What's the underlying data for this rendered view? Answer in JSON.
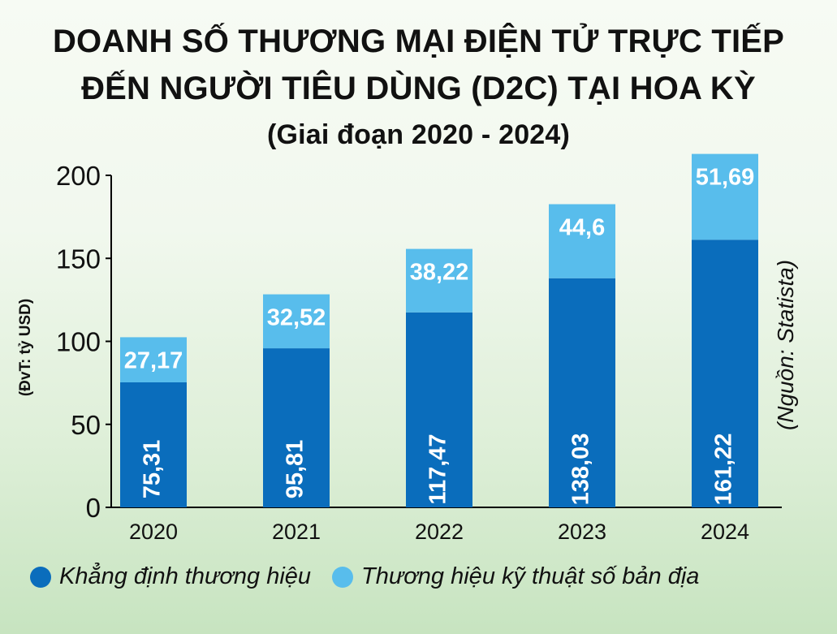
{
  "title": {
    "line1": "DOANH SỐ THƯƠNG MẠI ĐIỆN TỬ TRỰC TIẾP",
    "line2": "ĐẾN NGƯỜI TIÊU DÙNG (D2C) TẠI HOA KỲ",
    "subtitle": "(Giai đoạn 2020 - 2024)"
  },
  "unit_label": "(ĐvT: tỷ USD)",
  "source_label": "(Nguồn: Statista)",
  "chart_data": {
    "type": "bar",
    "stacked": true,
    "categories": [
      "2020",
      "2021",
      "2022",
      "2023",
      "2024"
    ],
    "series": [
      {
        "name": "Khẳng định thương hiệu",
        "values": [
          75.31,
          95.81,
          117.47,
          138.03,
          161.22
        ],
        "labels": [
          "75,31",
          "95,81",
          "117,47",
          "138,03",
          "161,22"
        ],
        "color": "#0a6dbc"
      },
      {
        "name": "Thương hiệu kỹ thuật số bản địa",
        "values": [
          27.17,
          32.52,
          38.22,
          44.6,
          51.69
        ],
        "labels": [
          "27,17",
          "32,52",
          "38,22",
          "44,6",
          "51,69"
        ],
        "color": "#58bdec"
      }
    ],
    "y_ticks": [
      0,
      50,
      100,
      150,
      200
    ],
    "ylim": [
      0,
      200
    ],
    "grid": false,
    "legend_position": "bottom"
  }
}
